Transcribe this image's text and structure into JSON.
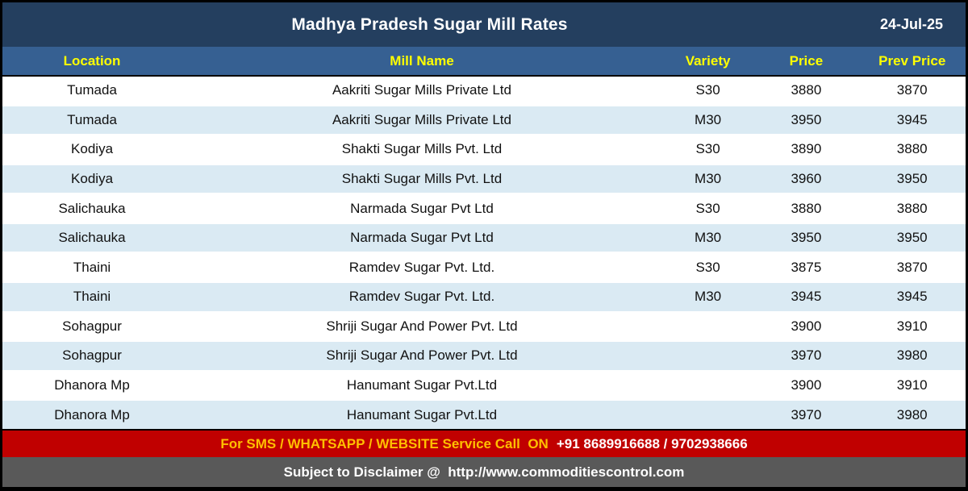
{
  "header": {
    "title": "Madhya Pradesh Sugar Mill Rates",
    "date": "24-Jul-25"
  },
  "table": {
    "columns": [
      "Location",
      "Mill Name",
      "Variety",
      "Price",
      "Prev Price"
    ],
    "rows": [
      [
        "Tumada",
        "Aakriti Sugar Mills Private Ltd",
        "S30",
        "3880",
        "3870"
      ],
      [
        "Tumada",
        "Aakriti Sugar Mills Private Ltd",
        "M30",
        "3950",
        "3945"
      ],
      [
        "Kodiya",
        "Shakti Sugar Mills Pvt. Ltd",
        "S30",
        "3890",
        "3880"
      ],
      [
        "Kodiya",
        "Shakti Sugar Mills Pvt. Ltd",
        "M30",
        "3960",
        "3950"
      ],
      [
        "Salichauka",
        "Narmada Sugar Pvt Ltd",
        "S30",
        "3880",
        "3880"
      ],
      [
        "Salichauka",
        "Narmada Sugar Pvt Ltd",
        "M30",
        "3950",
        "3950"
      ],
      [
        "Thaini",
        "Ramdev Sugar Pvt. Ltd.",
        "S30",
        "3875",
        "3870"
      ],
      [
        "Thaini",
        "Ramdev Sugar Pvt. Ltd.",
        "M30",
        "3945",
        "3945"
      ],
      [
        "Sohagpur",
        "Shriji Sugar And Power Pvt. Ltd",
        "",
        "3900",
        "3910"
      ],
      [
        "Sohagpur",
        "Shriji Sugar And Power Pvt. Ltd",
        "",
        "3970",
        "3980"
      ],
      [
        "Dhanora Mp",
        "Hanumant Sugar Pvt.Ltd",
        "",
        "3900",
        "3910"
      ],
      [
        "Dhanora Mp",
        "Hanumant Sugar Pvt.Ltd",
        "",
        "3970",
        "3980"
      ]
    ]
  },
  "footer": {
    "sms_label": "For SMS / WHATSAPP / WEBSITE Service Call  ON",
    "phone": "+91 8689916688 / 9702938666",
    "disclaimer_prefix": "Subject to Disclaimer @  ",
    "disclaimer_url": "http://www.commoditiescontrol.com"
  },
  "colors": {
    "navy": "#243F5F",
    "steel": "#366092",
    "header_yellow": "#FFFF00",
    "row_alt": "#DAEAF3",
    "red": "#C00000",
    "gold": "#FFC000",
    "gray": "#595959"
  }
}
